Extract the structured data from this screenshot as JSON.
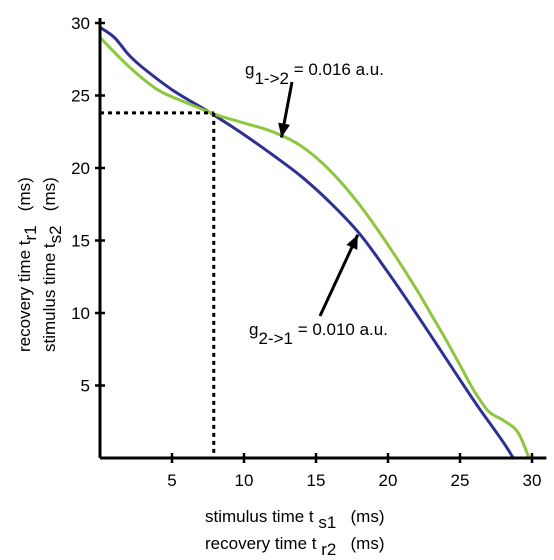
{
  "chart_data": {
    "type": "line",
    "x_ticks": [
      5,
      10,
      15,
      20,
      25,
      30
    ],
    "y_ticks": [
      5,
      10,
      15,
      20,
      25,
      30
    ],
    "xlim": [
      0,
      31
    ],
    "ylim": [
      0,
      30
    ],
    "grid": false,
    "xlabel_lines": [
      {
        "text": "stimulus time t ",
        "sub": "s1",
        "unit": "   (ms)"
      },
      {
        "text": "recovery time t ",
        "sub": "r2",
        "unit": "   (ms)"
      }
    ],
    "ylabel_lines": [
      {
        "text": "recovery time t",
        "sub": "r1",
        "unit": "   (ms)"
      },
      {
        "text": "stimulus time t",
        "sub": "s2",
        "unit": "   (ms)"
      }
    ],
    "series": [
      {
        "color": "#2e3191",
        "x": [
          0,
          1,
          2,
          3,
          5,
          7,
          8,
          10,
          12,
          14,
          16,
          18,
          20,
          22,
          24,
          26,
          27,
          28,
          28.7
        ],
        "y": [
          29.7,
          29.0,
          27.8,
          26.9,
          25.4,
          24.2,
          23.6,
          22.3,
          20.9,
          19.4,
          17.6,
          15.5,
          12.8,
          9.9,
          6.9,
          3.9,
          2.5,
          1.1,
          0
        ]
      },
      {
        "color": "#8dc63f",
        "x": [
          0,
          2,
          4,
          6,
          8,
          10,
          12,
          14,
          16,
          18,
          20,
          22,
          23,
          24,
          25,
          26,
          27,
          28,
          29,
          29.8
        ],
        "y": [
          29.0,
          27.0,
          25.4,
          24.5,
          23.7,
          23.1,
          22.5,
          21.5,
          19.8,
          17.5,
          14.7,
          11.6,
          9.9,
          8.2,
          6.4,
          4.6,
          3.2,
          2.6,
          1.8,
          0
        ]
      }
    ],
    "intersection": {
      "x": 7.9,
      "y": 23.8
    },
    "annotations": [
      {
        "label_main": "g",
        "label_sub": "1->2",
        "label_value": " = 0.016 a.u.",
        "arrow_to": {
          "x": 12.6,
          "y": 22.1
        }
      },
      {
        "label_main": "g",
        "label_sub": "2->1",
        "label_value": " = 0.010 a.u.",
        "arrow_to": {
          "x": 17.9,
          "y": 15.4
        }
      }
    ]
  }
}
